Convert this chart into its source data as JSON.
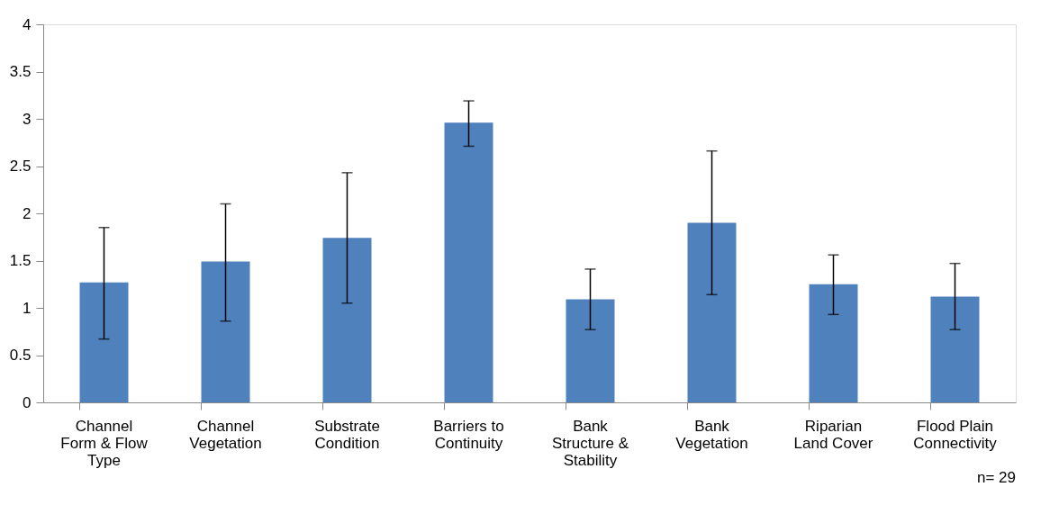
{
  "chart_data": {
    "type": "bar",
    "categories": [
      "Channel Form & Flow Type",
      "Channel Vegetation",
      "Substrate Condition",
      "Barriers to Continuity",
      "Bank Structure & Stability",
      "Bank Vegetation",
      "Riparian Land Cover",
      "Flood Plain Connectivity"
    ],
    "values": [
      1.27,
      1.49,
      1.74,
      2.96,
      1.09,
      1.9,
      1.25,
      1.12
    ],
    "errors": [
      [
        0.67,
        1.85
      ],
      [
        0.86,
        2.1
      ],
      [
        1.05,
        2.43
      ],
      [
        2.71,
        3.19
      ],
      0.32,
      [
        1.14,
        2.66
      ],
      [
        0.93,
        1.56
      ],
      [
        0.77,
        1.47
      ]
    ],
    "color": "#4f81bd",
    "ylim": [
      0,
      4
    ],
    "yticks": [
      0,
      0.5,
      1,
      1.5,
      2,
      2.5,
      3,
      3.5,
      4
    ],
    "grid": false,
    "annotations": [
      "n= 29"
    ]
  }
}
